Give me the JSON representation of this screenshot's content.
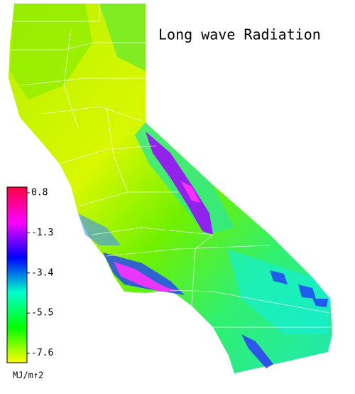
{
  "title": "Long wave Radiation",
  "colorbar": {
    "label": "MJ/m↑2",
    "lim": [
      -8.1,
      1.1
    ],
    "ticks": [
      0.8,
      -1.3,
      -3.4,
      -5.5,
      -7.6
    ],
    "colors": [
      "#ffff00",
      "#00ff00",
      "#00ffcc",
      "#0000ff",
      "#ff00ff",
      "#ff0040"
    ]
  }
}
